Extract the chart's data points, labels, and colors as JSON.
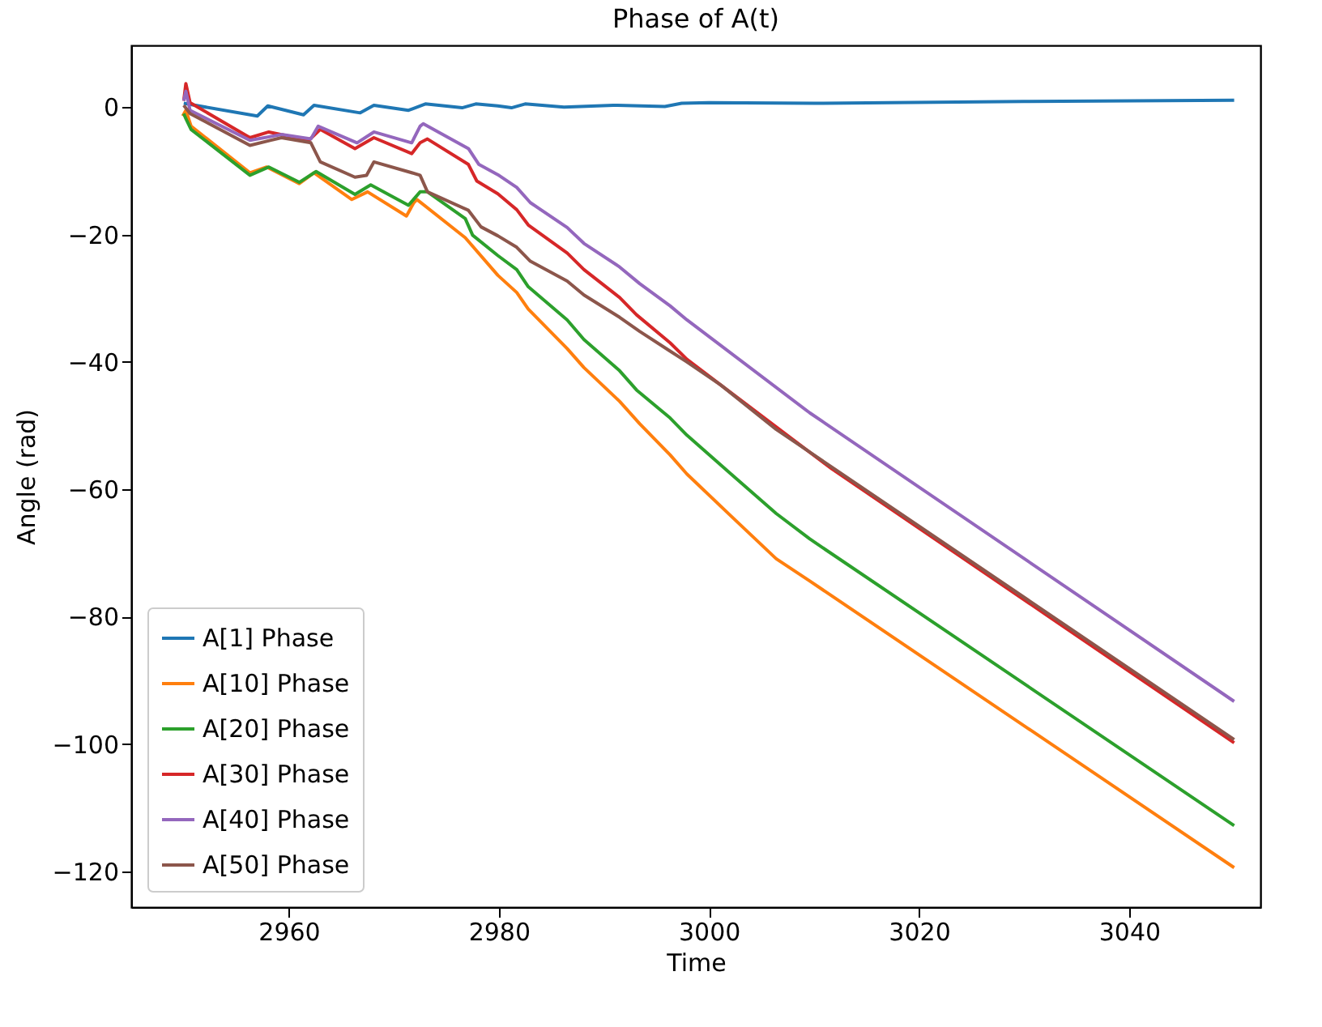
{
  "chart_data": {
    "type": "line",
    "title": "Phase of A(t)",
    "xlabel": "Time",
    "ylabel": "Angle (rad)",
    "xlim": [
      2945,
      3052.5
    ],
    "ylim": [
      -125.6,
      9.7
    ],
    "xticks": [
      2960,
      2980,
      3000,
      3020,
      3040
    ],
    "yticks": [
      -120,
      -100,
      -80,
      -60,
      -40,
      -20,
      0
    ],
    "grid": false,
    "legend": "bottom left",
    "line_style": "solid",
    "marker": "none",
    "series": [
      {
        "name": "A[1] Phase",
        "color": "#1f77b4",
        "x": [
          2950,
          2957,
          2958,
          2961.4,
          2962.4,
          2966.8,
          2968.1,
          2971.4,
          2973,
          2976.5,
          2977.8,
          2979.9,
          2981.2,
          2982.5,
          2986.2,
          2990.9,
          2995.8,
          2997.4,
          3000,
          3010,
          3030,
          3050
        ],
        "values": [
          0.6,
          -1.4,
          0.2,
          -1.2,
          0.3,
          -0.9,
          0.3,
          -0.5,
          0.5,
          -0.1,
          0.5,
          0.2,
          -0.1,
          0.5,
          0,
          0.3,
          0.1,
          0.6,
          0.7,
          0.6,
          0.9,
          1.1
        ]
      },
      {
        "name": "A[10] Phase",
        "color": "#ff7f0e",
        "x": [
          2949.9,
          2950.2,
          2950.7,
          2956.3,
          2957.9,
          2961,
          2962.4,
          2966,
          2967.5,
          2971.2,
          2971.9,
          2972.2,
          2976.8,
          2979.9,
          2981.7,
          2982.8,
          2986.5,
          2988.1,
          2991.5,
          2993.4,
          2996.3,
          2997.9,
          3002.1,
          3006.4,
          3009.6,
          3050
        ],
        "values": [
          -1.4,
          -0.5,
          -3,
          -10.3,
          -9.4,
          -12,
          -10.3,
          -14.5,
          -13.3,
          -17.1,
          -15,
          -14.5,
          -20.5,
          -26.4,
          -29.1,
          -31.7,
          -37.9,
          -40.9,
          -46.2,
          -49.7,
          -54.6,
          -57.6,
          -64.2,
          -70.9,
          -74.4,
          -119.4
        ]
      },
      {
        "name": "A[20] Phase",
        "color": "#2ca02c",
        "x": [
          2950,
          2950.2,
          2950.7,
          2956.3,
          2958.1,
          2961,
          2962.6,
          2966.3,
          2967.8,
          2971.4,
          2972.5,
          2973.2,
          2976.8,
          2977.5,
          2979.9,
          2981.7,
          2982.8,
          2986.5,
          2988.1,
          2991.5,
          2993.1,
          2996.3,
          2997.9,
          3002.1,
          3006.4,
          3009.6,
          3050
        ],
        "values": [
          -1,
          -1.8,
          -3.5,
          -10.7,
          -9.4,
          -11.8,
          -10.1,
          -13.7,
          -12.2,
          -15.4,
          -13.3,
          -13.3,
          -17.5,
          -20.1,
          -23.3,
          -25.5,
          -28.2,
          -33.4,
          -36.5,
          -41.4,
          -44.4,
          -48.8,
          -51.5,
          -57.6,
          -63.8,
          -67.8,
          -112.8
        ]
      },
      {
        "name": "A[30] Phase",
        "color": "#d62728",
        "x": [
          2950,
          2950.2,
          2950.6,
          2956.3,
          2958.1,
          2961.9,
          2963,
          2966.3,
          2968.1,
          2971.7,
          2972.5,
          2973.2,
          2977.1,
          2977.9,
          2979.9,
          2981.7,
          2982.8,
          2986.5,
          2988.1,
          2991.5,
          2993.1,
          2996.3,
          2997.9,
          3001.1,
          3006.4,
          3011.7,
          3050
        ],
        "values": [
          1,
          3.7,
          0.7,
          -4.8,
          -3.9,
          -5.2,
          -3.5,
          -6.5,
          -4.8,
          -7.3,
          -5.6,
          -5,
          -9,
          -11.6,
          -13.6,
          -16.1,
          -18.5,
          -22.9,
          -25.5,
          -29.9,
          -32.6,
          -37,
          -39.6,
          -43.6,
          -50.2,
          -56.8,
          -99.8
        ]
      },
      {
        "name": "A[40] Phase",
        "color": "#9467bd",
        "x": [
          2950,
          2950.2,
          2950.6,
          2956.3,
          2959.3,
          2962.1,
          2962.8,
          2966.5,
          2968.1,
          2971.7,
          2972.5,
          2972.8,
          2977.1,
          2978.1,
          2979.9,
          2981.7,
          2983,
          2986.5,
          2988.1,
          2991.5,
          2993.4,
          2996.3,
          2997.9,
          3009.6,
          3050
        ],
        "values": [
          1,
          2.5,
          -0.5,
          -5.2,
          -4.3,
          -5,
          -3,
          -5.6,
          -3.9,
          -5.6,
          -3,
          -2.6,
          -6.5,
          -9,
          -10.6,
          -12.6,
          -15,
          -18.9,
          -21.4,
          -25.1,
          -27.7,
          -31.2,
          -33.4,
          -48,
          -93.3
        ]
      },
      {
        "name": "A[50] Phase",
        "color": "#8c564b",
        "x": [
          2950,
          2950.6,
          2956.3,
          2958.3,
          2959.3,
          2962.1,
          2963,
          2966.3,
          2967.4,
          2968.1,
          2971.7,
          2972.5,
          2973.2,
          2977.1,
          2978.3,
          2979.9,
          2981.7,
          2983,
          2986.5,
          2988.1,
          2991.5,
          2993.4,
          2996.3,
          2997.9,
          3001.1,
          3006.4,
          3050
        ],
        "values": [
          0.3,
          -1,
          -6,
          -5.2,
          -4.8,
          -5.6,
          -8.6,
          -11,
          -10.7,
          -8.6,
          -10.3,
          -10.7,
          -13.3,
          -16.2,
          -18.8,
          -20.2,
          -22,
          -24.2,
          -27.3,
          -29.5,
          -33,
          -35.2,
          -38.3,
          -40,
          -43.6,
          -50.6,
          -99.3
        ]
      }
    ]
  }
}
